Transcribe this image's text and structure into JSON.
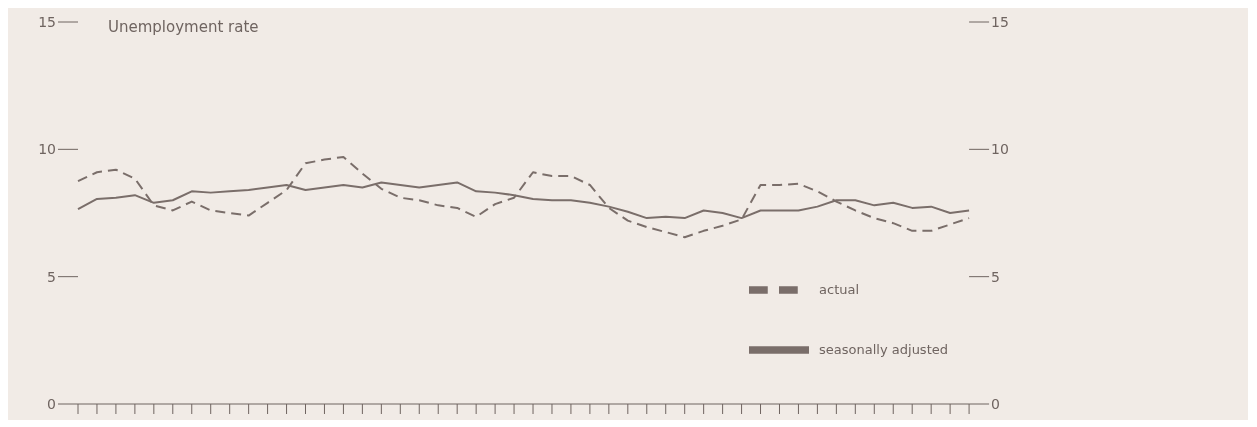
{
  "chart_data": {
    "type": "line",
    "title": "Unemployment rate",
    "categories": [
      null,
      null,
      null,
      null,
      null,
      null,
      null,
      null,
      null,
      null,
      null,
      null,
      null,
      null,
      null,
      null,
      null,
      null,
      null,
      null,
      null,
      null,
      null,
      null,
      null,
      null,
      null,
      null,
      null,
      null,
      null,
      null,
      null,
      null,
      null,
      null,
      null,
      null,
      null,
      null,
      null,
      null,
      null,
      null,
      null,
      null,
      null,
      null
    ],
    "series": [
      {
        "name": "actual",
        "color": "#7a6e6a",
        "line_style": "dashed",
        "values": [
          8.75,
          9.1,
          9.2,
          8.85,
          7.8,
          7.6,
          7.95,
          7.6,
          7.5,
          7.4,
          7.9,
          8.4,
          9.45,
          9.6,
          9.7,
          9.05,
          8.45,
          8.1,
          8.0,
          7.8,
          7.7,
          7.35,
          7.85,
          8.1,
          9.1,
          8.95,
          8.95,
          8.6,
          7.7,
          7.2,
          6.95,
          6.75,
          6.55,
          6.8,
          7.0,
          7.25,
          8.6,
          8.6,
          8.65,
          8.35,
          7.95,
          7.6,
          7.3,
          7.1,
          6.8,
          6.8,
          7.05,
          7.3
        ]
      },
      {
        "name": "seasonally adjusted",
        "color": "#7a6e6a",
        "line_style": "solid",
        "values": [
          7.65,
          8.05,
          8.1,
          8.2,
          7.9,
          8.0,
          8.35,
          8.3,
          8.35,
          8.4,
          8.5,
          8.6,
          8.4,
          8.5,
          8.6,
          8.5,
          8.7,
          8.6,
          8.5,
          8.6,
          8.7,
          8.35,
          8.3,
          8.2,
          8.05,
          8.0,
          8.0,
          7.9,
          7.75,
          7.55,
          7.3,
          7.35,
          7.3,
          7.6,
          7.5,
          7.3,
          7.6,
          7.6,
          7.6,
          7.75,
          8.0,
          8.0,
          7.8,
          7.9,
          7.7,
          7.75,
          7.5,
          7.6
        ]
      }
    ],
    "ylim": [
      0,
      15
    ],
    "yticks": [
      0,
      5,
      10,
      15
    ],
    "y2lim": [
      0,
      15
    ],
    "y2ticks": [
      0,
      5,
      10,
      15
    ],
    "legend": "bottom right",
    "marker": "none"
  }
}
